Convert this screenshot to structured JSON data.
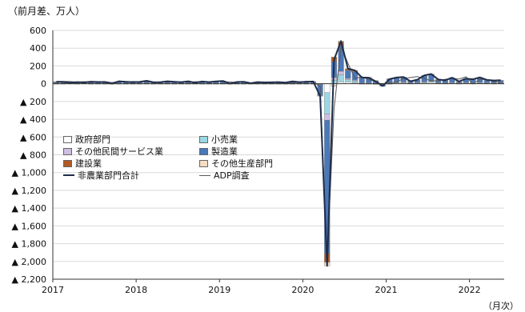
{
  "chart_data": {
    "type": "bar",
    "title": "",
    "ylabel": "（前月差、万人）",
    "xlabel": "（月次）",
    "ylim": [
      -2200,
      600
    ],
    "y_ticks": [
      {
        "v": 600,
        "label": "600"
      },
      {
        "v": 400,
        "label": "400"
      },
      {
        "v": 200,
        "label": "200"
      },
      {
        "v": 0,
        "label": "0"
      },
      {
        "v": -200,
        "label": "▲ 200"
      },
      {
        "v": -400,
        "label": "▲ 400"
      },
      {
        "v": -600,
        "label": "▲ 600"
      },
      {
        "v": -800,
        "label": "▲ 800"
      },
      {
        "v": -1000,
        "label": "▲ 1,000"
      },
      {
        "v": -1200,
        "label": "▲ 1,200"
      },
      {
        "v": -1400,
        "label": "▲ 1,400"
      },
      {
        "v": -1600,
        "label": "▲ 1,600"
      },
      {
        "v": -1800,
        "label": "▲ 1,800"
      },
      {
        "v": -2000,
        "label": "▲ 2,000"
      },
      {
        "v": -2200,
        "label": "▲ 2,200"
      }
    ],
    "x_tick_labels": [
      "2017",
      "2018",
      "2019",
      "2020",
      "2021",
      "2022"
    ],
    "x_start": "2017-01",
    "x_end": "2022-05",
    "grid": true,
    "legend_position": "bottom-left",
    "stacked_bar_series": [
      {
        "name": "政府部門",
        "color": "#ffffff"
      },
      {
        "name": "小売業",
        "color": "#9ad8e3"
      },
      {
        "name": "その他民間サービス業",
        "color": "#cdbfe3"
      },
      {
        "name": "製造業",
        "color": "#4a78b8"
      },
      {
        "name": "建設業",
        "color": "#b25a26"
      },
      {
        "name": "その他生産部門",
        "color": "#f5dcc2"
      }
    ],
    "line_series": [
      {
        "name": "非農業部門合計",
        "color": "#1f2d4a",
        "width": 2
      },
      {
        "name": "ADP調査",
        "color": "#5a5a5a",
        "width": 1
      }
    ],
    "months": [
      "2017-01",
      "2017-02",
      "2017-03",
      "2017-04",
      "2017-05",
      "2017-06",
      "2017-07",
      "2017-08",
      "2017-09",
      "2017-10",
      "2017-11",
      "2017-12",
      "2018-01",
      "2018-02",
      "2018-03",
      "2018-04",
      "2018-05",
      "2018-06",
      "2018-07",
      "2018-08",
      "2018-09",
      "2018-10",
      "2018-11",
      "2018-12",
      "2019-01",
      "2019-02",
      "2019-03",
      "2019-04",
      "2019-05",
      "2019-06",
      "2019-07",
      "2019-08",
      "2019-09",
      "2019-10",
      "2019-11",
      "2019-12",
      "2020-01",
      "2020-02",
      "2020-03",
      "2020-04",
      "2020-05",
      "2020-06",
      "2020-07",
      "2020-08",
      "2020-09",
      "2020-10",
      "2020-11",
      "2020-12",
      "2021-01",
      "2021-02",
      "2021-03",
      "2021-04",
      "2021-05",
      "2021-06",
      "2021-07",
      "2021-08",
      "2021-09",
      "2021-10",
      "2021-11",
      "2021-12",
      "2022-01",
      "2022-02",
      "2022-03",
      "2022-04",
      "2022-05"
    ],
    "total_nonfarm": [
      22,
      20,
      10,
      18,
      15,
      23,
      19,
      20,
      2,
      27,
      22,
      18,
      20,
      33,
      16,
      17,
      27,
      22,
      17,
      27,
      11,
      25,
      18,
      26,
      31,
      1,
      19,
      22,
      6,
      18,
      15,
      16,
      18,
      13,
      26,
      18,
      21,
      25,
      -140,
      -2050,
      270,
      480,
      170,
      150,
      70,
      68,
      26,
      -25,
      52,
      70,
      75,
      27,
      45,
      94,
      109,
      48,
      38,
      68,
      25,
      58,
      50,
      71,
      43,
      36,
      39
    ],
    "adp": [
      25,
      26,
      25,
      18,
      23,
      16,
      18,
      24,
      13,
      23,
      19,
      25,
      23,
      23,
      19,
      20,
      18,
      18,
      22,
      16,
      23,
      22,
      17,
      27,
      21,
      20,
      13,
      25,
      3,
      11,
      15,
      18,
      13,
      12,
      6,
      19,
      28,
      15,
      -30,
      -1990,
      -280,
      420,
      230,
      60,
      80,
      45,
      25,
      -12,
      10,
      18,
      60,
      70,
      80,
      60,
      30,
      35,
      50,
      60,
      52,
      78,
      -2,
      50,
      45,
      25,
      13
    ],
    "stacks": [
      [
        1,
        1,
        5,
        14,
        1,
        0
      ],
      [
        1,
        2,
        4,
        12,
        1,
        0
      ],
      [
        0,
        0,
        2,
        6,
        1,
        1
      ],
      [
        0,
        1,
        2,
        14,
        0,
        1
      ],
      [
        0,
        0,
        2,
        11,
        1,
        1
      ],
      [
        1,
        1,
        3,
        16,
        1,
        1
      ],
      [
        0,
        1,
        3,
        13,
        2,
        0
      ],
      [
        1,
        1,
        3,
        13,
        1,
        1
      ],
      [
        0,
        1,
        2,
        0,
        0,
        -1
      ],
      [
        1,
        1,
        4,
        20,
        1,
        0
      ],
      [
        1,
        1,
        3,
        16,
        1,
        0
      ],
      [
        1,
        1,
        3,
        12,
        1,
        0
      ],
      [
        1,
        1,
        3,
        13,
        1,
        1
      ],
      [
        1,
        2,
        5,
        21,
        2,
        2
      ],
      [
        1,
        1,
        3,
        10,
        1,
        0
      ],
      [
        1,
        1,
        3,
        11,
        1,
        0
      ],
      [
        1,
        1,
        4,
        19,
        1,
        1
      ],
      [
        1,
        1,
        3,
        15,
        1,
        1
      ],
      [
        1,
        1,
        3,
        11,
        1,
        0
      ],
      [
        1,
        1,
        4,
        19,
        1,
        1
      ],
      [
        1,
        0,
        2,
        7,
        1,
        0
      ],
      [
        1,
        1,
        3,
        17,
        2,
        1
      ],
      [
        1,
        1,
        3,
        12,
        1,
        0
      ],
      [
        1,
        1,
        4,
        18,
        1,
        1
      ],
      [
        1,
        1,
        4,
        22,
        2,
        1
      ],
      [
        1,
        0,
        1,
        0,
        -1,
        0
      ],
      [
        1,
        1,
        2,
        13,
        1,
        1
      ],
      [
        1,
        1,
        3,
        15,
        1,
        1
      ],
      [
        1,
        0,
        1,
        3,
        0,
        1
      ],
      [
        1,
        1,
        3,
        12,
        1,
        0
      ],
      [
        1,
        1,
        2,
        10,
        1,
        0
      ],
      [
        1,
        1,
        2,
        11,
        1,
        0
      ],
      [
        1,
        1,
        3,
        12,
        1,
        0
      ],
      [
        1,
        1,
        2,
        9,
        1,
        -1
      ],
      [
        1,
        1,
        3,
        17,
        4,
        0
      ],
      [
        1,
        1,
        3,
        12,
        1,
        0
      ],
      [
        1,
        1,
        3,
        14,
        1,
        1
      ],
      [
        1,
        1,
        4,
        17,
        1,
        1
      ],
      [
        -2,
        -4,
        -4,
        -120,
        -5,
        -5
      ],
      [
        -100,
        -240,
        -70,
        -1500,
        -100,
        -40
      ],
      [
        -20,
        40,
        30,
        180,
        50,
        -10
      ],
      [
        20,
        80,
        40,
        290,
        40,
        10
      ],
      [
        20,
        25,
        15,
        90,
        15,
        5
      ],
      [
        10,
        20,
        10,
        95,
        10,
        5
      ],
      [
        -5,
        5,
        5,
        55,
        5,
        5
      ],
      [
        -5,
        5,
        5,
        50,
        5,
        8
      ],
      [
        -10,
        0,
        3,
        28,
        3,
        2
      ],
      [
        -15,
        -5,
        2,
        -10,
        2,
        1
      ],
      [
        -5,
        5,
        5,
        43,
        2,
        2
      ],
      [
        8,
        5,
        5,
        45,
        3,
        4
      ],
      [
        10,
        5,
        5,
        50,
        3,
        2
      ],
      [
        3,
        3,
        3,
        15,
        2,
        1
      ],
      [
        5,
        3,
        3,
        30,
        2,
        2
      ],
      [
        10,
        8,
        5,
        65,
        3,
        3
      ],
      [
        15,
        10,
        5,
        70,
        5,
        4
      ],
      [
        5,
        5,
        3,
        30,
        3,
        2
      ],
      [
        3,
        3,
        3,
        25,
        2,
        2
      ],
      [
        5,
        5,
        5,
        45,
        4,
        4
      ],
      [
        2,
        2,
        3,
        15,
        2,
        1
      ],
      [
        5,
        5,
        5,
        38,
        3,
        2
      ],
      [
        3,
        5,
        5,
        32,
        3,
        2
      ],
      [
        5,
        5,
        6,
        48,
        4,
        3
      ],
      [
        3,
        3,
        4,
        28,
        3,
        2
      ],
      [
        2,
        3,
        3,
        23,
        3,
        2
      ],
      [
        3,
        3,
        3,
        25,
        3,
        2
      ]
    ]
  }
}
